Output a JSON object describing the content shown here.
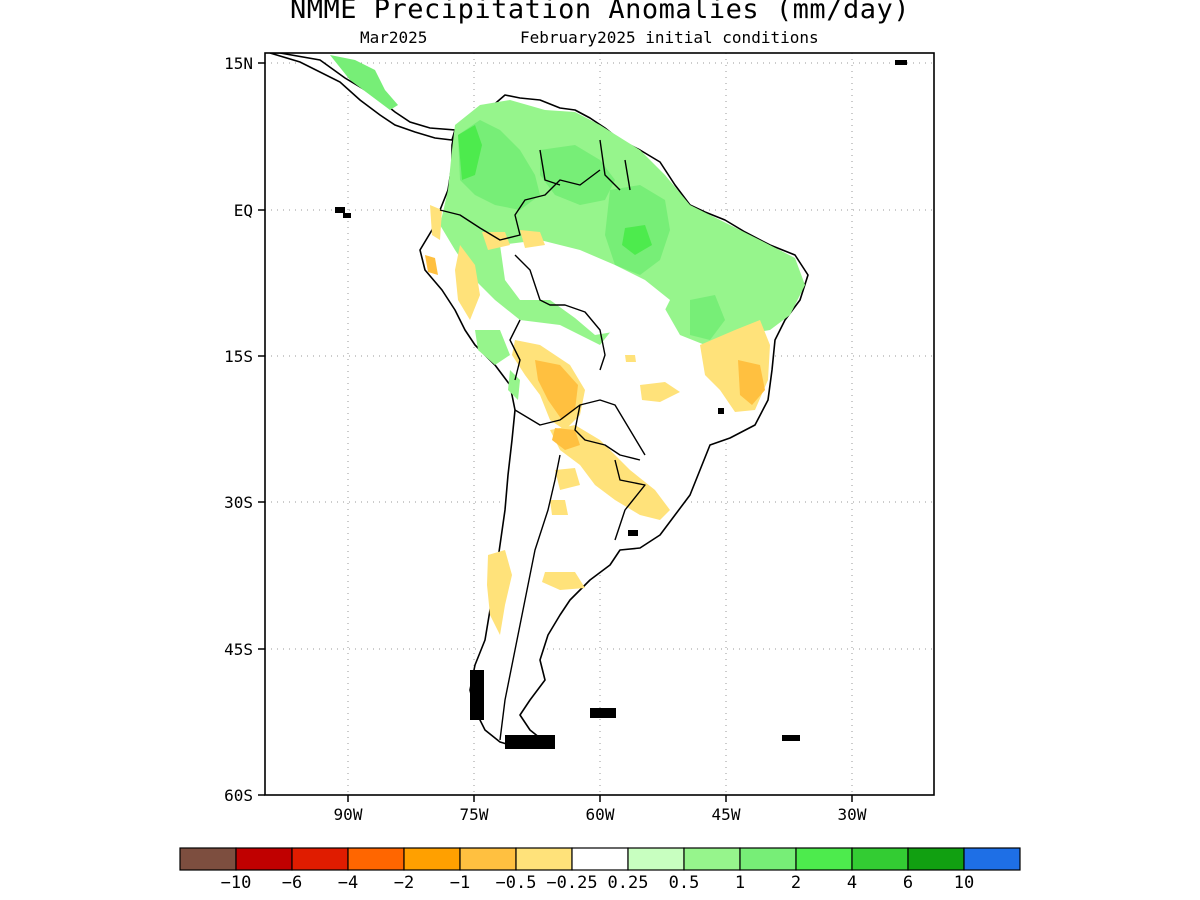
{
  "title": "NMME Precipitation Anomalies (mm/day)",
  "subtitle_left": "Mar2025",
  "subtitle_right": "February2025 initial conditions",
  "map": {
    "region": "South America",
    "lat_ticks": [
      "15N",
      "EQ",
      "15S",
      "30S",
      "45S",
      "60S"
    ],
    "lon_ticks": [
      "90W",
      "75W",
      "60W",
      "45W",
      "30W"
    ],
    "grid": "dotted",
    "wet_color": "#77ee77",
    "dry_color": "#ffd27a"
  },
  "colorbar": {
    "colors": [
      "#7d4e3f",
      "#c00000",
      "#e01c00",
      "#ff6600",
      "#ffa000",
      "#ffc040",
      "#ffe27a",
      "#ffffff",
      "#c8ffc0",
      "#96f58c",
      "#77ee77",
      "#4deb4d",
      "#33cc33",
      "#11a011",
      "#1e6fe6"
    ],
    "labels": [
      "−10",
      "−6",
      "−4",
      "−2",
      "−1",
      "−0.5",
      "−0.25",
      "0.25",
      "0.5",
      "1",
      "2",
      "4",
      "6",
      "10"
    ]
  }
}
